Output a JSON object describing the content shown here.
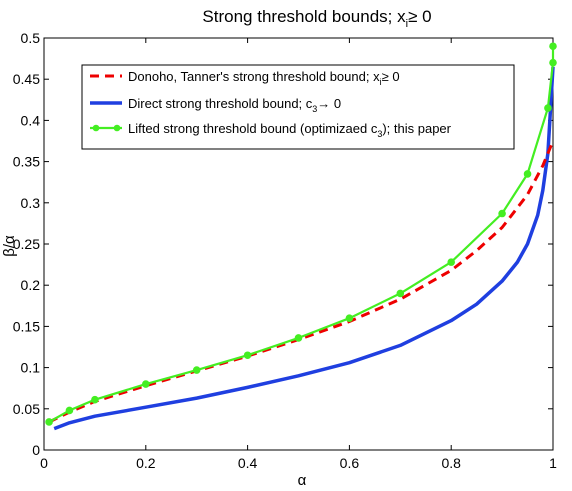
{
  "chart_data": {
    "type": "line",
    "title": "Strong threshold bounds; x_i ≥ 0",
    "title_parts": {
      "main": "Strong threshold bounds; x",
      "sub": "i",
      "rest": "≥ 0"
    },
    "xlabel": "α",
    "ylabel": "β/α",
    "xlim": [
      0,
      1
    ],
    "ylim": [
      0,
      0.5
    ],
    "xticks": [
      "0",
      "0.2",
      "0.4",
      "0.6",
      "0.8",
      "1"
    ],
    "xtick_values": [
      0,
      0.2,
      0.4,
      0.6,
      0.8,
      1
    ],
    "yticks": [
      "0",
      "0.05",
      "0.1",
      "0.15",
      "0.2",
      "0.25",
      "0.3",
      "0.35",
      "0.4",
      "0.45",
      "0.5"
    ],
    "ytick_values": [
      0,
      0.05,
      0.1,
      0.15,
      0.2,
      0.25,
      0.3,
      0.35,
      0.4,
      0.45,
      0.5
    ],
    "grid": false,
    "legend_position": "top",
    "series": [
      {
        "name": "Donoho, Tanner's strong threshold bound; x_i ≥ 0",
        "legend_parts": {
          "main": "Donoho, Tanner's strong threshold bound; x",
          "sub": "i",
          "rest": "≥ 0"
        },
        "color": "#ee0000",
        "style": "dashed",
        "x": [
          0.01,
          0.05,
          0.1,
          0.2,
          0.3,
          0.4,
          0.5,
          0.6,
          0.7,
          0.8,
          0.85,
          0.9,
          0.95,
          0.98,
          1.0
        ],
        "y": [
          0.034,
          0.046,
          0.059,
          0.078,
          0.096,
          0.114,
          0.134,
          0.156,
          0.183,
          0.218,
          0.242,
          0.27,
          0.31,
          0.345,
          0.375
        ]
      },
      {
        "name": "Direct strong threshold bound; c_3 → 0",
        "legend_parts": {
          "main": "Direct strong threshold bound; c",
          "sub": "3",
          "rest": "→ 0"
        },
        "color": "#1f3fe0",
        "style": "solid",
        "x": [
          0.02,
          0.05,
          0.1,
          0.2,
          0.3,
          0.4,
          0.5,
          0.6,
          0.7,
          0.8,
          0.85,
          0.9,
          0.93,
          0.95,
          0.97,
          0.98,
          0.99,
          1.0
        ],
        "y": [
          0.026,
          0.033,
          0.041,
          0.052,
          0.063,
          0.076,
          0.09,
          0.106,
          0.127,
          0.157,
          0.177,
          0.205,
          0.228,
          0.25,
          0.285,
          0.315,
          0.36,
          0.465
        ]
      },
      {
        "name": "Lifted strong threshold bound (optimizaed c_3); this paper",
        "legend_parts": {
          "main": "Lifted strong threshold bound (optimizaed c",
          "sub": "3",
          "rest": "); this paper"
        },
        "color": "#44ee22",
        "style": "solid-markers",
        "x": [
          0.01,
          0.05,
          0.1,
          0.2,
          0.3,
          0.4,
          0.5,
          0.6,
          0.7,
          0.8,
          0.9,
          0.95,
          0.99,
          1.0,
          1.0
        ],
        "y": [
          0.034,
          0.048,
          0.061,
          0.08,
          0.097,
          0.115,
          0.136,
          0.16,
          0.19,
          0.228,
          0.287,
          0.335,
          0.415,
          0.47,
          0.49
        ]
      }
    ]
  }
}
